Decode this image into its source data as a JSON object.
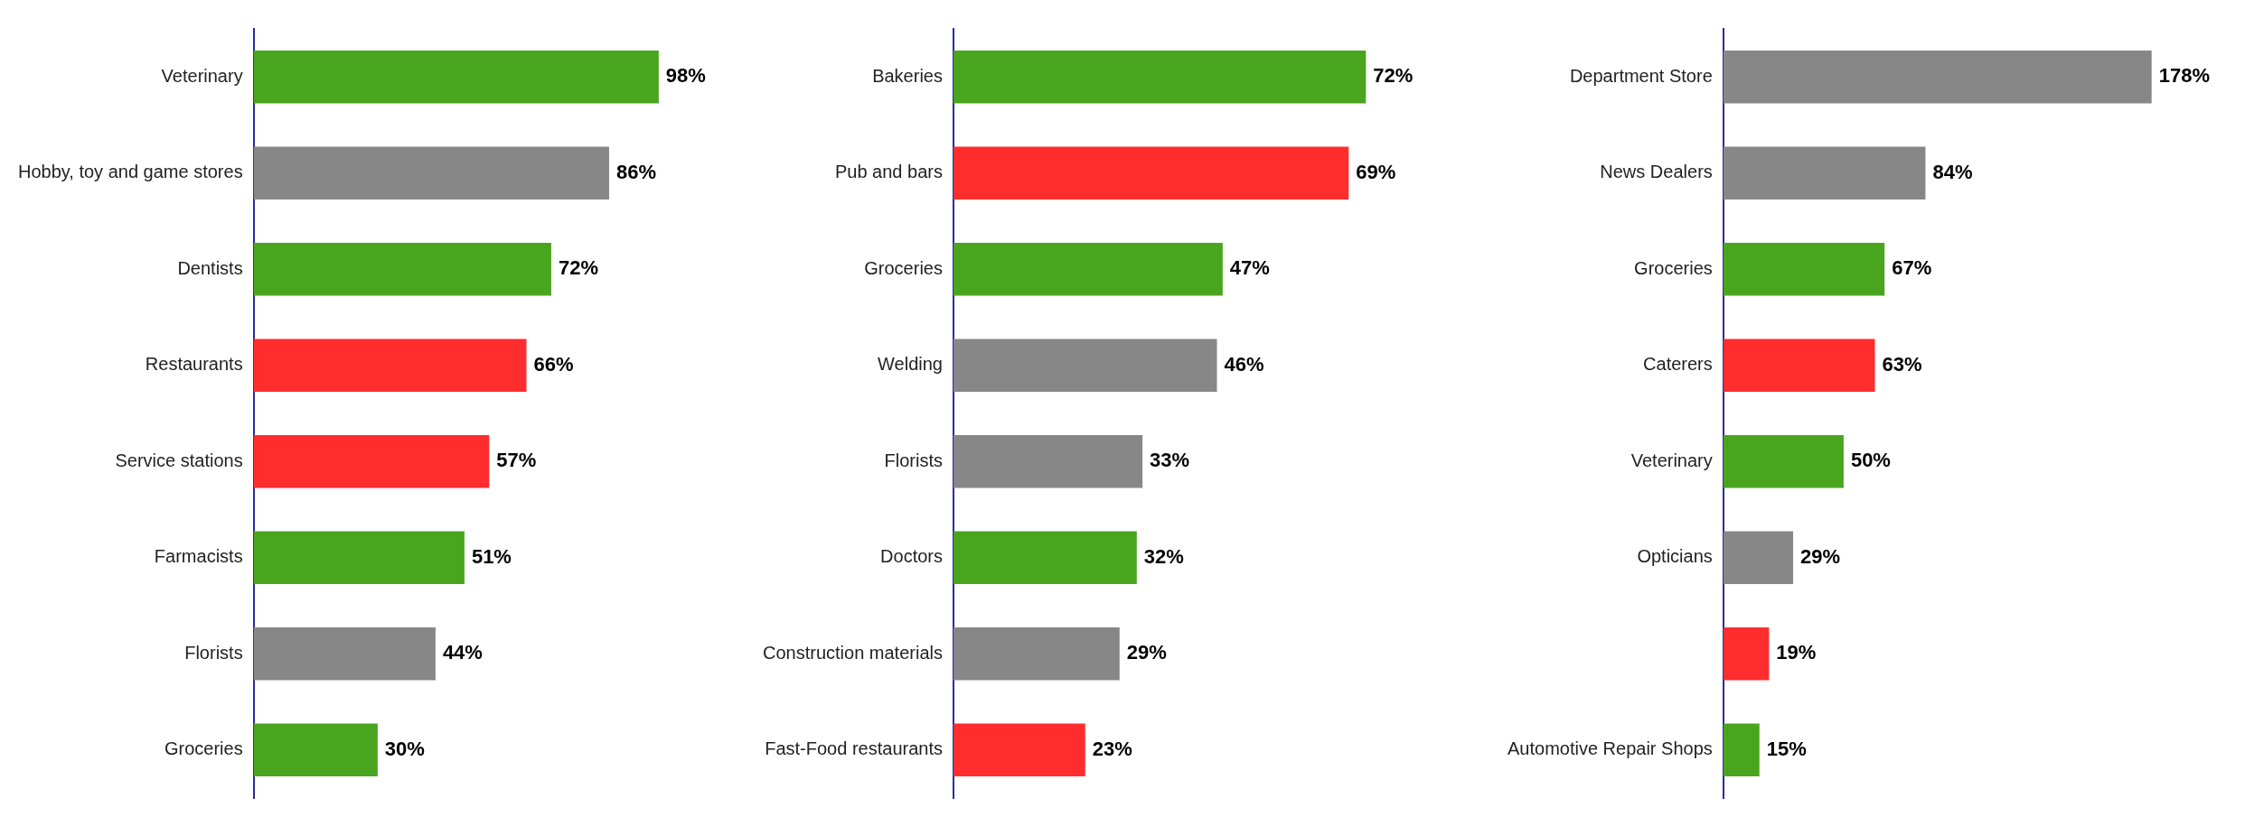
{
  "chart_data": [
    {
      "type": "bar",
      "orientation": "horizontal",
      "categories": [
        "Veterinary",
        "Hobby, toy and game stores",
        "Dentists",
        "Restaurants",
        "Service stations",
        "Farmacists",
        "Florists",
        "Groceries"
      ],
      "values": [
        98,
        86,
        72,
        66,
        57,
        51,
        44,
        30
      ],
      "colors": [
        "#49a51e",
        "#878787",
        "#49a51e",
        "#ff2d2d",
        "#ff2d2d",
        "#49a51e",
        "#878787",
        "#49a51e"
      ],
      "value_labels": [
        "98%",
        "86%",
        "72%",
        "66%",
        "57%",
        "51%",
        "44%",
        "30%"
      ]
    },
    {
      "type": "bar",
      "orientation": "horizontal",
      "categories": [
        "Bakeries",
        "Pub and bars",
        "Groceries",
        "Welding",
        "Florists",
        "Doctors",
        "Construction materials",
        "Fast-Food restaurants"
      ],
      "values": [
        72,
        69,
        47,
        46,
        33,
        32,
        29,
        23
      ],
      "colors": [
        "#49a51e",
        "#ff2d2d",
        "#49a51e",
        "#878787",
        "#878787",
        "#49a51e",
        "#878787",
        "#ff2d2d"
      ],
      "value_labels": [
        "72%",
        "69%",
        "47%",
        "46%",
        "33%",
        "32%",
        "29%",
        "23%"
      ]
    },
    {
      "type": "bar",
      "orientation": "horizontal",
      "categories": [
        "Department Store",
        "News Dealers",
        "Groceries",
        "Caterers",
        "Veterinary",
        "Opticians",
        null,
        "Automotive Repair Shops"
      ],
      "values": [
        178,
        84,
        67,
        63,
        50,
        29,
        19,
        15
      ],
      "colors": [
        "#878787",
        "#878787",
        "#49a51e",
        "#ff2d2d",
        "#49a51e",
        "#878787",
        "#ff2d2d",
        "#49a51e"
      ],
      "value_labels": [
        "178%",
        "84%",
        "67%",
        "63%",
        "50%",
        "29%",
        "19%",
        "15%"
      ]
    }
  ]
}
